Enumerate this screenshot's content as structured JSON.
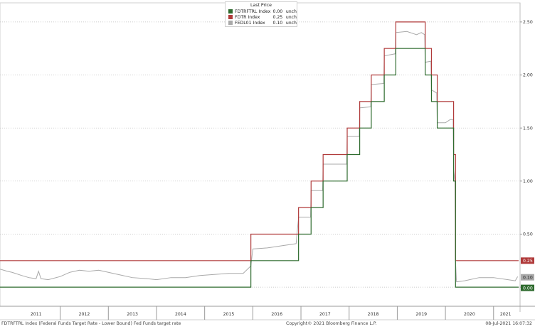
{
  "chart_data": {
    "type": "line",
    "x_range": [
      2010.75,
      2021.55
    ],
    "ylim": [
      -0.18,
      2.68
    ],
    "y_ticks": [
      0.0,
      0.5,
      1.0,
      1.5,
      2.0,
      2.5
    ],
    "y_tick_labels": [
      "0.00",
      "0.50",
      "1.00",
      "1.50",
      "2.00",
      "2.50"
    ],
    "x_ticks": [
      {
        "label": "2011",
        "pos": 2011.5
      },
      {
        "label": "2012",
        "pos": 2012.5
      },
      {
        "label": "2013",
        "pos": 2013.5
      },
      {
        "label": "2014",
        "pos": 2014.5
      },
      {
        "label": "2015",
        "pos": 2015.5
      },
      {
        "label": "2016",
        "pos": 2016.5
      },
      {
        "label": "2017",
        "pos": 2017.5
      },
      {
        "label": "2018",
        "pos": 2018.5
      },
      {
        "label": "2019",
        "pos": 2019.5
      },
      {
        "label": "2020",
        "pos": 2020.5
      },
      {
        "label": "2021",
        "pos": 2021.25
      }
    ],
    "year_boundaries": [
      2012,
      2013,
      2014,
      2015,
      2016,
      2017,
      2018,
      2019,
      2020,
      2021
    ],
    "grid": true,
    "legend_position": "top-center",
    "legend_title": "Last Price",
    "series": [
      {
        "name": "FDTRFTRL Index",
        "last": "0.00",
        "change": "unch",
        "color": "#2e6b2e",
        "step": true,
        "points": [
          [
            2010.75,
            0.0
          ],
          [
            2015.96,
            0.0
          ],
          [
            2015.96,
            0.25
          ],
          [
            2016.95,
            0.25
          ],
          [
            2016.95,
            0.5
          ],
          [
            2017.21,
            0.5
          ],
          [
            2017.21,
            0.75
          ],
          [
            2017.46,
            0.75
          ],
          [
            2017.46,
            1.0
          ],
          [
            2017.96,
            1.0
          ],
          [
            2017.96,
            1.25
          ],
          [
            2018.22,
            1.25
          ],
          [
            2018.22,
            1.5
          ],
          [
            2018.46,
            1.5
          ],
          [
            2018.46,
            1.75
          ],
          [
            2018.73,
            1.75
          ],
          [
            2018.73,
            2.0
          ],
          [
            2018.97,
            2.0
          ],
          [
            2018.97,
            2.25
          ],
          [
            2019.58,
            2.25
          ],
          [
            2019.58,
            2.0
          ],
          [
            2019.71,
            2.0
          ],
          [
            2019.71,
            1.75
          ],
          [
            2019.83,
            1.75
          ],
          [
            2019.83,
            1.5
          ],
          [
            2020.17,
            1.5
          ],
          [
            2020.17,
            1.0
          ],
          [
            2020.21,
            1.0
          ],
          [
            2020.21,
            0.0
          ],
          [
            2021.52,
            0.0
          ]
        ]
      },
      {
        "name": "FDTR Index",
        "last": "0.25",
        "change": "unch",
        "color": "#b03a3a",
        "step": true,
        "points": [
          [
            2010.75,
            0.25
          ],
          [
            2015.96,
            0.25
          ],
          [
            2015.96,
            0.5
          ],
          [
            2016.95,
            0.5
          ],
          [
            2016.95,
            0.75
          ],
          [
            2017.21,
            0.75
          ],
          [
            2017.21,
            1.0
          ],
          [
            2017.46,
            1.0
          ],
          [
            2017.46,
            1.25
          ],
          [
            2017.96,
            1.25
          ],
          [
            2017.96,
            1.5
          ],
          [
            2018.22,
            1.5
          ],
          [
            2018.22,
            1.75
          ],
          [
            2018.46,
            1.75
          ],
          [
            2018.46,
            2.0
          ],
          [
            2018.73,
            2.0
          ],
          [
            2018.73,
            2.25
          ],
          [
            2018.97,
            2.25
          ],
          [
            2018.97,
            2.5
          ],
          [
            2019.58,
            2.5
          ],
          [
            2019.58,
            2.25
          ],
          [
            2019.71,
            2.25
          ],
          [
            2019.71,
            2.0
          ],
          [
            2019.83,
            2.0
          ],
          [
            2019.83,
            1.75
          ],
          [
            2020.17,
            1.75
          ],
          [
            2020.17,
            1.25
          ],
          [
            2020.21,
            1.25
          ],
          [
            2020.21,
            0.25
          ],
          [
            2021.52,
            0.25
          ]
        ]
      },
      {
        "name": "FEDL01 Index",
        "last": "0.10",
        "change": "unch",
        "color": "#a9a9a9",
        "step": false,
        "points": [
          [
            2010.75,
            0.17
          ],
          [
            2010.9,
            0.15
          ],
          [
            2011.0,
            0.14
          ],
          [
            2011.2,
            0.11
          ],
          [
            2011.35,
            0.09
          ],
          [
            2011.5,
            0.08
          ],
          [
            2011.55,
            0.15
          ],
          [
            2011.6,
            0.08
          ],
          [
            2011.75,
            0.07
          ],
          [
            2012.0,
            0.1
          ],
          [
            2012.2,
            0.14
          ],
          [
            2012.4,
            0.16
          ],
          [
            2012.6,
            0.15
          ],
          [
            2012.8,
            0.16
          ],
          [
            2013.0,
            0.14
          ],
          [
            2013.2,
            0.12
          ],
          [
            2013.5,
            0.09
          ],
          [
            2013.8,
            0.08
          ],
          [
            2014.0,
            0.07
          ],
          [
            2014.3,
            0.09
          ],
          [
            2014.6,
            0.09
          ],
          [
            2014.9,
            0.11
          ],
          [
            2015.2,
            0.12
          ],
          [
            2015.5,
            0.13
          ],
          [
            2015.8,
            0.13
          ],
          [
            2015.96,
            0.2
          ],
          [
            2016.0,
            0.36
          ],
          [
            2016.3,
            0.37
          ],
          [
            2016.6,
            0.39
          ],
          [
            2016.9,
            0.41
          ],
          [
            2016.95,
            0.66
          ],
          [
            2017.2,
            0.66
          ],
          [
            2017.21,
            0.91
          ],
          [
            2017.45,
            0.91
          ],
          [
            2017.46,
            1.16
          ],
          [
            2017.95,
            1.16
          ],
          [
            2017.96,
            1.42
          ],
          [
            2018.21,
            1.42
          ],
          [
            2018.22,
            1.69
          ],
          [
            2018.45,
            1.7
          ],
          [
            2018.46,
            1.91
          ],
          [
            2018.72,
            1.92
          ],
          [
            2018.73,
            2.18
          ],
          [
            2018.96,
            2.2
          ],
          [
            2018.97,
            2.4
          ],
          [
            2019.2,
            2.41
          ],
          [
            2019.4,
            2.38
          ],
          [
            2019.5,
            2.4
          ],
          [
            2019.57,
            2.38
          ],
          [
            2019.58,
            2.12
          ],
          [
            2019.7,
            2.13
          ],
          [
            2019.71,
            1.86
          ],
          [
            2019.82,
            1.83
          ],
          [
            2019.83,
            1.55
          ],
          [
            2020.0,
            1.55
          ],
          [
            2020.1,
            1.58
          ],
          [
            2020.16,
            1.58
          ],
          [
            2020.17,
            1.1
          ],
          [
            2020.2,
            1.0
          ],
          [
            2020.21,
            0.25
          ],
          [
            2020.23,
            0.05
          ],
          [
            2020.4,
            0.06
          ],
          [
            2020.7,
            0.09
          ],
          [
            2021.0,
            0.09
          ],
          [
            2021.3,
            0.07
          ],
          [
            2021.45,
            0.06
          ],
          [
            2021.5,
            0.1
          ]
        ]
      }
    ],
    "value_badges": [
      {
        "text": "0.25",
        "value": 0.25,
        "color": "#b03a3a"
      },
      {
        "text": "0.10",
        "value": 0.1,
        "color": "#a9a9a9"
      },
      {
        "text": "0.00",
        "value": 0.0,
        "color": "#2e6b2e"
      }
    ]
  },
  "legend": {
    "title": "Last Price",
    "rows": [
      {
        "name": "FDTRFTRL Index",
        "value": "0.00",
        "change": "unch",
        "color": "#2e6b2e"
      },
      {
        "name": "FDTR Index",
        "value": "0.25",
        "change": "unch",
        "color": "#b03a3a"
      },
      {
        "name": "FEDL01 Index",
        "value": "0.10",
        "change": "unch",
        "color": "#a9a9a9"
      }
    ]
  },
  "footer": {
    "left": "FDTRFTRL Index (Federal Funds Target Rate - Lower Bound) Fed Funds target rate",
    "center": "Copyright© 2021 Bloomberg Finance L.P.",
    "right": "08-Jul-2021 16:07:32"
  }
}
